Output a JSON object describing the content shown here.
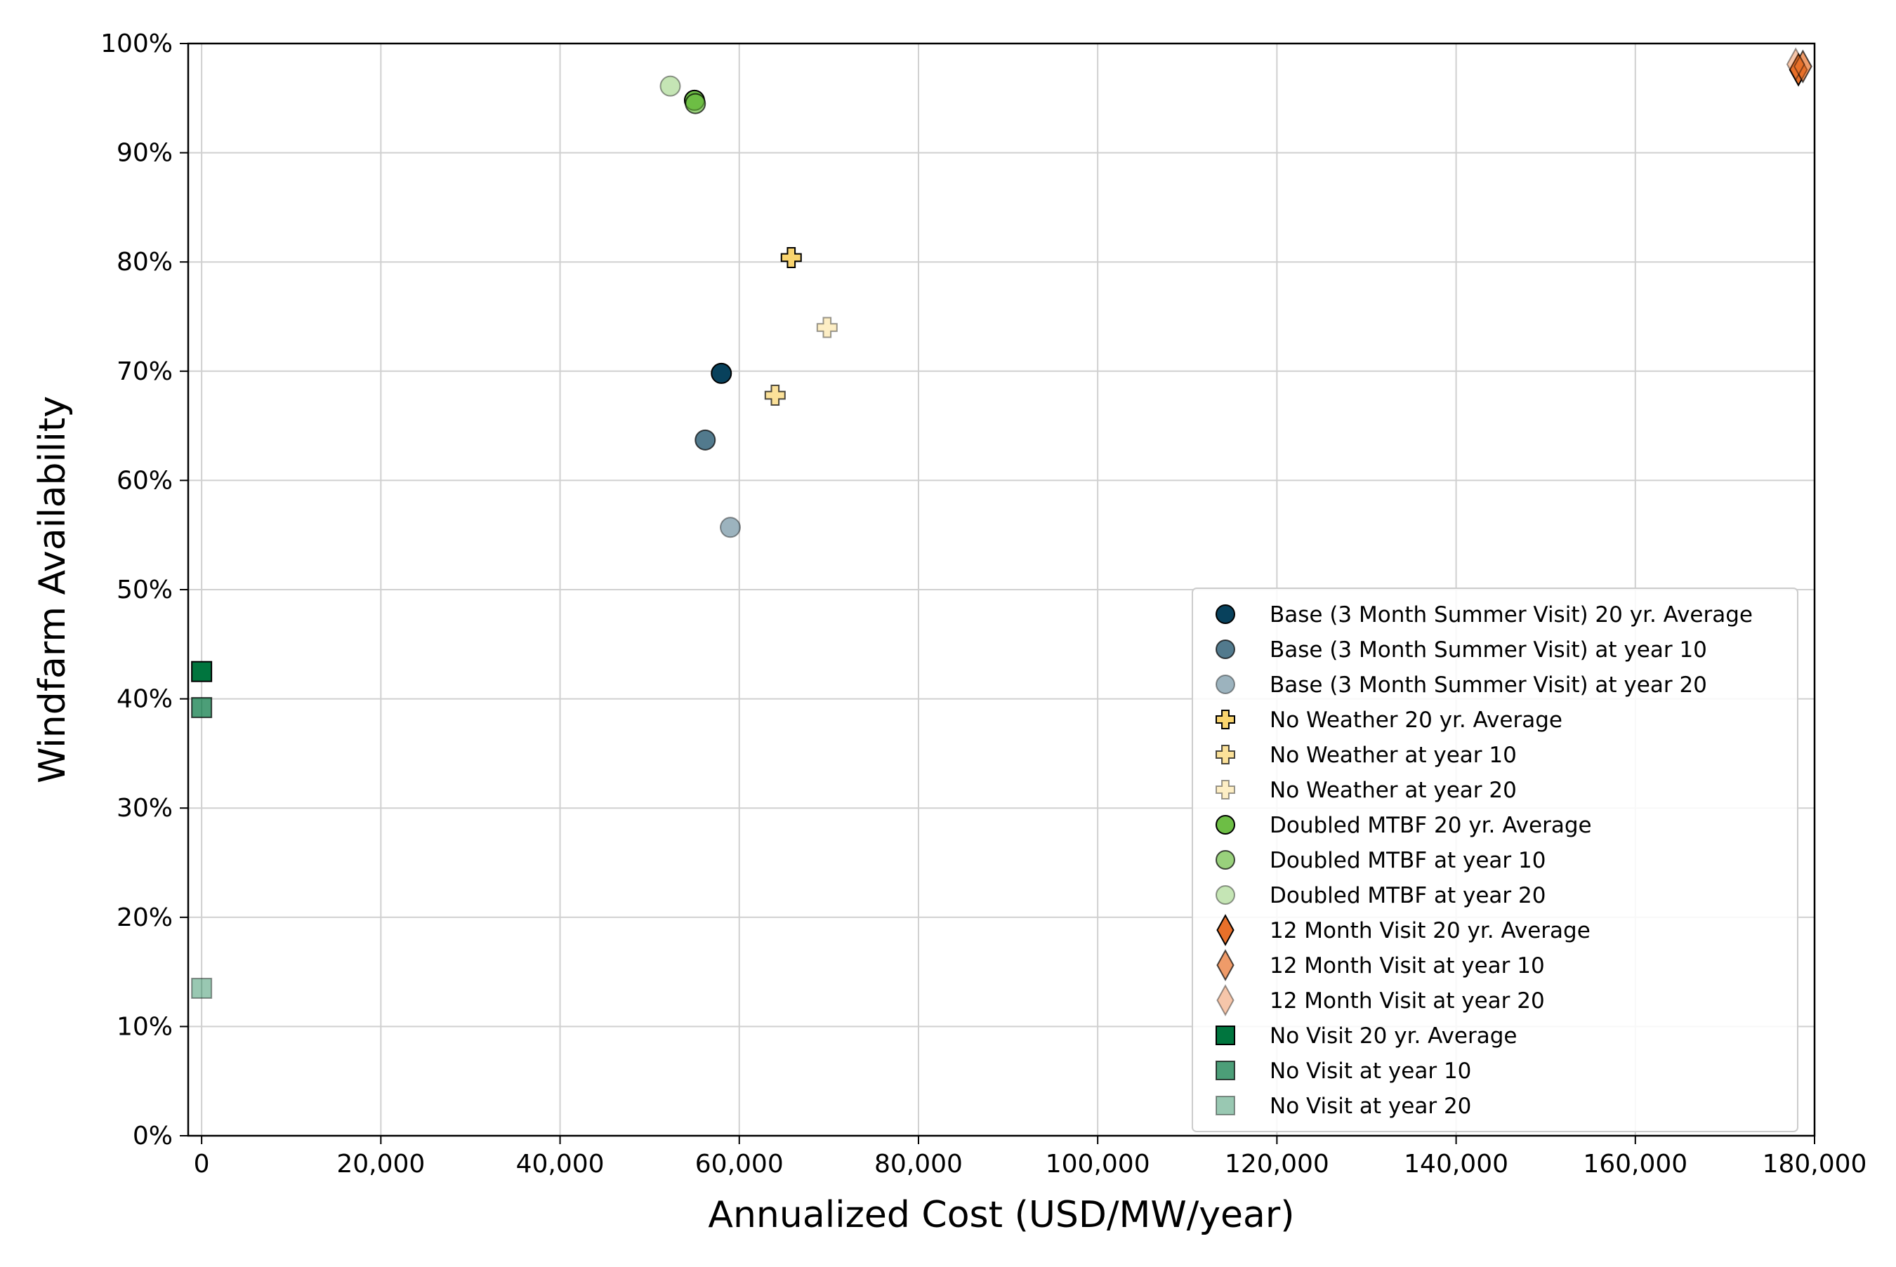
{
  "chart_data": {
    "type": "scatter",
    "xlabel": "Annualized Cost (USD/MW/year)",
    "ylabel": "Windfarm Availability",
    "xlim": [
      -1500,
      180000
    ],
    "ylim": [
      0,
      100
    ],
    "x_ticks": [
      {
        "value": 0,
        "label": "0"
      },
      {
        "value": 20000,
        "label": "20,000"
      },
      {
        "value": 40000,
        "label": "40,000"
      },
      {
        "value": 60000,
        "label": "60,000"
      },
      {
        "value": 80000,
        "label": "80,000"
      },
      {
        "value": 100000,
        "label": "100,000"
      },
      {
        "value": 120000,
        "label": "120,000"
      },
      {
        "value": 140000,
        "label": "140,000"
      },
      {
        "value": 160000,
        "label": "160,000"
      },
      {
        "value": 180000,
        "label": "180,000"
      }
    ],
    "y_ticks": [
      {
        "value": 0,
        "label": "0%"
      },
      {
        "value": 10,
        "label": "10%"
      },
      {
        "value": 20,
        "label": "20%"
      },
      {
        "value": 30,
        "label": "30%"
      },
      {
        "value": 40,
        "label": "40%"
      },
      {
        "value": 50,
        "label": "50%"
      },
      {
        "value": 60,
        "label": "60%"
      },
      {
        "value": 70,
        "label": "70%"
      },
      {
        "value": 80,
        "label": "80%"
      },
      {
        "value": 90,
        "label": "90%"
      },
      {
        "value": 100,
        "label": "100%"
      }
    ],
    "grid": true,
    "legend_position": "lower-right",
    "series": [
      {
        "name": "Base (3 Month Summer Visit) 20 yr. Average",
        "marker": "circle",
        "color": "#08415C",
        "alpha": 1.0,
        "points": [
          {
            "x": 58000,
            "y": 69.8
          }
        ]
      },
      {
        "name": "Base (3 Month Summer Visit) at year 10",
        "marker": "circle",
        "color": "#08415C",
        "alpha": 0.7,
        "points": [
          {
            "x": 56200,
            "y": 63.7
          }
        ]
      },
      {
        "name": "Base (3 Month Summer Visit) at year 20",
        "marker": "circle",
        "color": "#08415C",
        "alpha": 0.4,
        "points": [
          {
            "x": 59000,
            "y": 55.7
          }
        ]
      },
      {
        "name": "No Weather 20 yr. Average",
        "marker": "plus",
        "color": "#F9D46E",
        "alpha": 1.0,
        "points": [
          {
            "x": 65800,
            "y": 80.4
          }
        ]
      },
      {
        "name": "No Weather at year 10",
        "marker": "plus",
        "color": "#F9D46E",
        "alpha": 0.7,
        "points": [
          {
            "x": 64000,
            "y": 67.8
          }
        ]
      },
      {
        "name": "No Weather at year 20",
        "marker": "plus",
        "color": "#F9D46E",
        "alpha": 0.4,
        "points": [
          {
            "x": 69800,
            "y": 74.0
          }
        ]
      },
      {
        "name": "Doubled MTBF 20 yr. Average",
        "marker": "circle",
        "color": "#6DBE45",
        "alpha": 1.0,
        "points": [
          {
            "x": 55000,
            "y": 94.8
          }
        ]
      },
      {
        "name": "Doubled MTBF at year 10",
        "marker": "circle",
        "color": "#6DBE45",
        "alpha": 0.7,
        "points": [
          {
            "x": 55100,
            "y": 94.5
          }
        ]
      },
      {
        "name": "Doubled MTBF at year 20",
        "marker": "circle",
        "color": "#6DBE45",
        "alpha": 0.4,
        "points": [
          {
            "x": 52300,
            "y": 96.1
          }
        ]
      },
      {
        "name": "12 Month Visit 20 yr. Average",
        "marker": "diamond",
        "color": "#E8702A",
        "alpha": 1.0,
        "points": [
          {
            "x": 178200,
            "y": 97.6
          }
        ]
      },
      {
        "name": "12 Month Visit at year 10",
        "marker": "diamond",
        "color": "#E8702A",
        "alpha": 0.7,
        "points": [
          {
            "x": 178700,
            "y": 97.9
          }
        ]
      },
      {
        "name": "12 Month Visit at year 20",
        "marker": "diamond",
        "color": "#E8702A",
        "alpha": 0.4,
        "points": [
          {
            "x": 177900,
            "y": 98.1
          }
        ]
      },
      {
        "name": "No Visit 20 yr. Average",
        "marker": "square",
        "color": "#00753E",
        "alpha": 1.0,
        "points": [
          {
            "x": 0,
            "y": 42.5
          }
        ]
      },
      {
        "name": "No Visit at year 10",
        "marker": "square",
        "color": "#00753E",
        "alpha": 0.7,
        "points": [
          {
            "x": 0,
            "y": 39.2
          }
        ]
      },
      {
        "name": "No Visit at year 20",
        "marker": "square",
        "color": "#00753E",
        "alpha": 0.4,
        "points": [
          {
            "x": 0,
            "y": 13.5
          }
        ]
      }
    ]
  }
}
